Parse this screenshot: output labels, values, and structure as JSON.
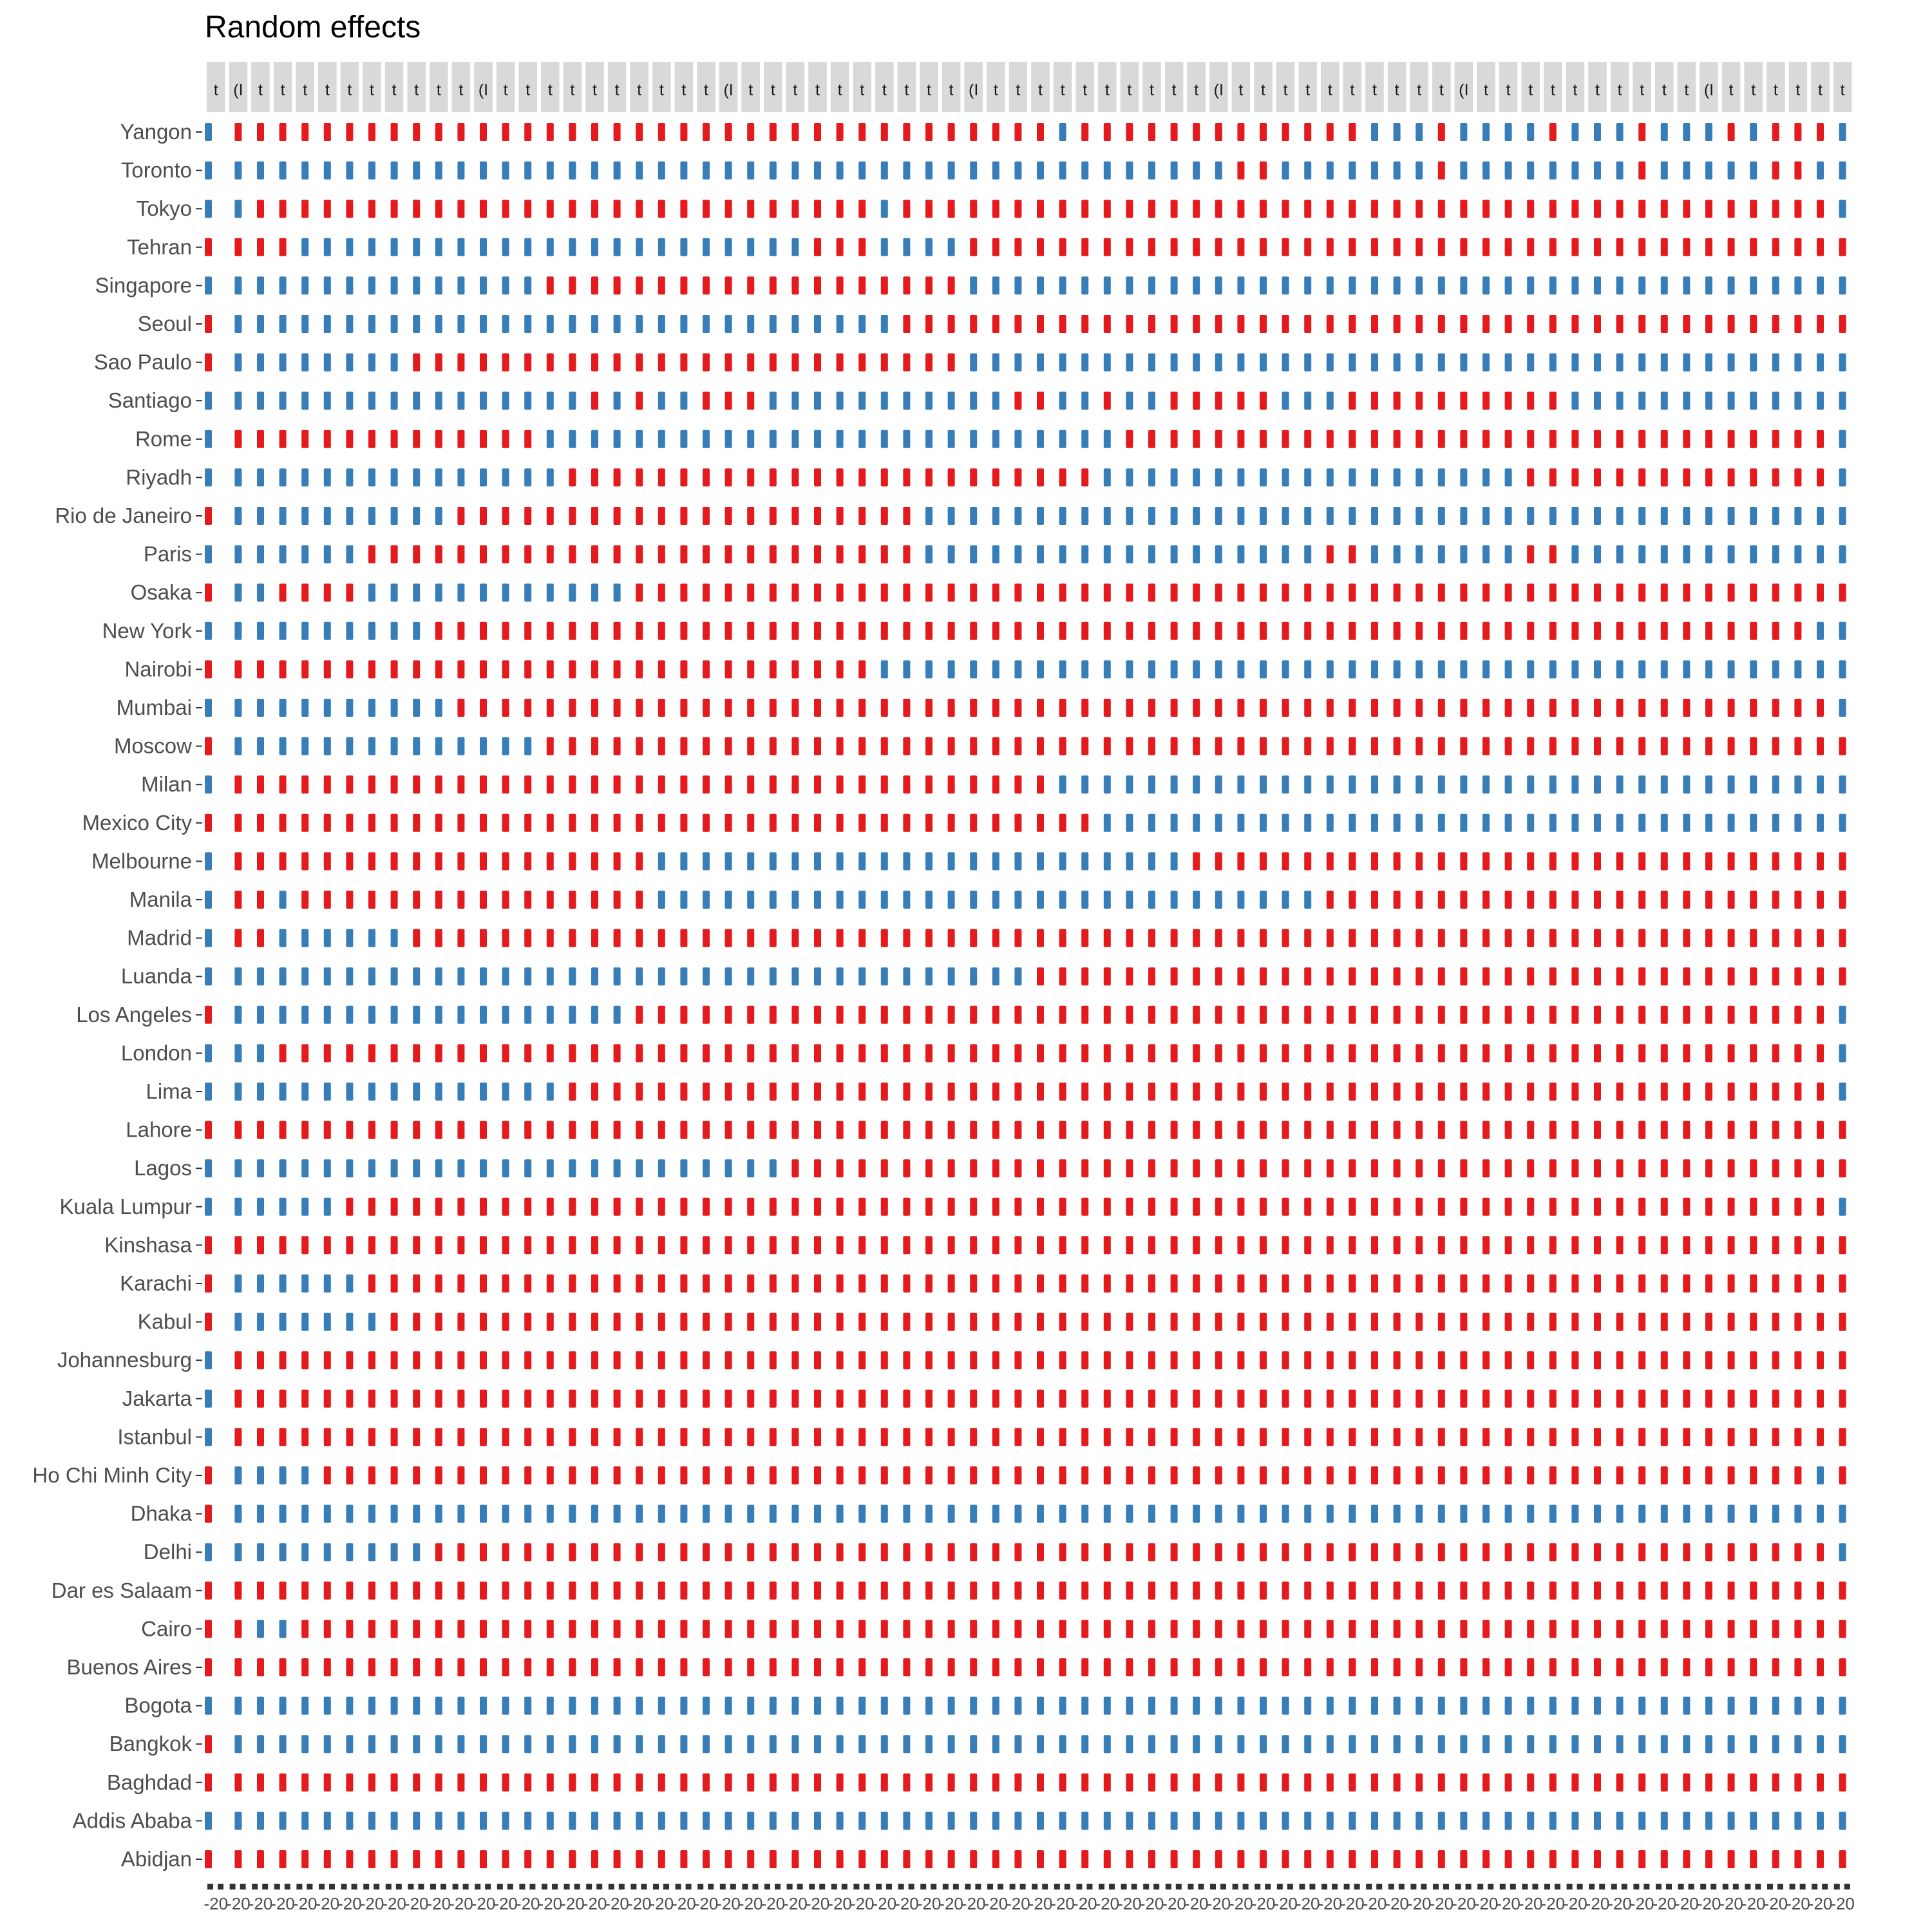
{
  "chart_data": {
    "type": "bar",
    "title": "Random effects",
    "subtitle": "",
    "xlabel": "",
    "ylabel": "",
    "facet_count": 74,
    "facet_strip_labels": [
      "t",
      "(I"
    ],
    "x_axis_tick_label": "-20",
    "legend": "none",
    "grid": false,
    "colors": {
      "positive": "#E41A1C",
      "negative": "#377EB8",
      "strip": "#d9d9d9",
      "axis": "#333333"
    },
    "categories": [
      "Yangon",
      "Toronto",
      "Tokyo",
      "Tehran",
      "Singapore",
      "Seoul",
      "Sao Paulo",
      "Santiago",
      "Rome",
      "Riyadh",
      "Rio de Janeiro",
      "Paris",
      "Osaka",
      "New York",
      "Nairobi",
      "Mumbai",
      "Moscow",
      "Milan",
      "Mexico City",
      "Melbourne",
      "Manila",
      "Madrid",
      "Luanda",
      "Los Angeles",
      "London",
      "Lima",
      "Lahore",
      "Lagos",
      "Kuala Lumpur",
      "Kinshasa",
      "Karachi",
      "Kabul",
      "Johannesburg",
      "Jakarta",
      "Istanbul",
      "Ho Chi Minh City",
      "Dhaka",
      "Delhi",
      "Dar es Salaam",
      "Cairo",
      "Buenos Aires",
      "Bogota",
      "Bangkok",
      "Baghdad",
      "Addis Ababa",
      "Abidjan"
    ],
    "sign_rows": [
      "BRRRRRRRRRRRRRRRRRRRRRRRRRRRRRRRRRRRRRBRRRRRRRRRRRRRBBBRBBBBRBBBRBBBRBRRRB",
      "BBBBBBBBBBBBBBBBBBBBBBBBBBBBBBBBBBBBBBBBBBBBBBRRBBBBBBBRBBBBBBBBRBBBBBRRBB",
      "BBRRRRRRRRRRRRRRRRRRRRRRRRRRRRBRRRRRRRRRRRRRRRRRRRRRRRRRRRRRRRRRRRRRRRRRRB",
      "RRRRBBBBBBBBBBBBBBBBBBBBBBBRRRBBBBRRRRRRRRRRRRRRRRRRRRRRRRRRRRRRRRRRRRRRRR",
      "BBBBBBBBBBBBBBBRRRRRRRRRRRRRRRRRRRBBBBBBBBBBBBBBBBBBBBBBBBBBBBBBBBBBBBBBBB",
      "RBBBBBBBBBBBBBBBBBBBBBBBBBBBBBBRRRRRRRRRRRRRRRRRRRRRRRRRRRRRRRRRRRRRRRRRRR",
      "RBBBBBBBBRRRRRRRRRRRRRRRRRRRRRRRRRBBBBBBBBBBBBBBBBBBBBBBBBBBBBBBBBBBBBBBBB",
      "BBBBBBBBBBBBBBBBBRBRBBRRRBBBBBBBBBBBRRBBRBBRRRRRBBBRRRRRRRRRRBBBBBBBBBBBBB",
      "BRRRRRRRRRRRRRRBBBBBBBBBBBBBBBBBBBBBBBBBBRRRRRRRRRRRRRRRRRRRRRRRRRRRRRRRRB",
      "BBBBBBBBBBBBBBBBRRRRRRRRRRRRRRRRRRRRRRRRBBBBBBBBBBBBBBBBBBBRRRRRRRRRRRRRRB",
      "RBBBBBBBBBBRRRRRRRRRRRRRRRRRRRRRBBBBBBBBBBBBBBBBBBBBBBBBBBBBBBBBBBBBBBBBBB",
      "BBBBBBBRRRRRRRRRRRRRRRRRRRRRRRRRBBBBBBBBBBBBBBBBBBRRBBBBBBBRRBBBBBBBBBBBBB",
      "RBBRRRRBBBBBBBBBBBBRRRRRRRRRRRRRRRRRRRRRRRRRRRRRRRRRRRRRRRRRRRRRRRRRRRRRRR",
      "BBBBBBBBBBRRRRRRRRRRRRRRRRRRRRRRRRRRRRRRRRRRRRRRRRRRRRRRRRRRRRRRRRRRRRRRBB",
      "RRRRRRRRRRRRRRRRRRRRRRRRRRRRRRBBBBBBBBBBBBBBBBBBBBBBBBBBBBBBBBBBBBBBBBBBBB",
      "BBBBBBBBBBBRRRRRRRRRRRRRRRRRRRRRRRRRRRRRRRRRRRRRRRRRRRRRRRRRRRRRRRRRRRRRRB",
      "RBBBBBBBBBBBBBBRRRRRRRRRRRRRRRRRRRRRRRRRRRRRRRRRRRRRRRRRRRRRRRRRRRRRRRRRRR",
      "BRRRRRRRRRRRRRRRRRRRRRRRRRRRRRRRRRRRRRBBBBBBBBBBBBBBBBBBBBBBBBBBBBBBBBBBBB",
      "RRRRRRRRRRRRRRRRRRRRRRRRRRRRRRRRRRRRRRRRBBBBBBBBBBBBBBBBBBBBBBBBBBBBBBBBBB",
      "BRRRRRRRRRRRRRRRRRRRBBBBBBBBBBBBBBBBBBBBBBBBRRRRRRRRRRRRRRRRRRRRRRRRRRRRRR",
      "BRRBRRRRRRRRRRRRRRRRBBBBBBBBBBBBBBBBBBBBBBBBBBBBBBRRRRRRRRRRRRRRRRRRRRRRRR",
      "BRRBBBBBBRRRRRRRRRRRRRRRRRRRRRRRRRRRRRRRRRRRRRRRRRRRRRRRRRRRRRRRRRRRRRRRRR",
      "BBBBBBBBBBBBBBBBBBBBBBBBBBBBBBBBBBBBBRRRRRRRRRRRRRRRRRRRRRRRRRRRRRRRRRRRRR",
      "RBBBBBBBBBBBBBBBBBBRRRRRRRRRRRRRRRRRRRRRRRRRRRRRRRRRRRRRRRRRRRRRRRRRRRRRRB",
      "BBBRRRRRRRRRRRRRRRRRRRRRRRRRRRRRRRRRRRRRRRRRRRRRRRRRRRRRRRRRRRRRRRRRRRRRRB",
      "BBBBBBBBBBBBBBBBRRRRRRRRRRRRRRRRRRRRRRRRRRRRRRRRRRRRRRRRRRRRRRRRRRRRRRRRRB",
      "RRRRRRRRRRRRRRRRRRRRRRRRRRRRRRRRRRRRRRRRRRRRRRRRRRRRRRRRRRRRRRRRRRRRRRRRRR",
      "BBBBBBBBBBBBBBBBBBBBBBBBBBRRRRRRRRRRRRRRRRRRRRRRRRRRRRRRRRRRRRRRRRRRRRRRRR",
      "BBBBBBRRRRRRRRRRRRRRRRRRRRRRRRRRRRRRRRRRRRRRRRRRRRRRRRRRRRRRRRRRRRRRRRRRRB",
      "RRRRRRRRRRRRRRRRRRRRRRRRRRRRRRRRRRRRRRRRRRRRRRRRRRRRRRRRRRRRRRRRRRRRRRRRRR",
      "RBBBBBBRRRRRRRRRRRRRRRRRRRRRRRRRRRRRRRRRRRRRRRRRRRRRRRRRRRRRRRRRRRRRRRRRRR",
      "RBBBBBBBRRRRRRRRRRRRRRRRRRRRRRRRRRRRRRRRRRRRRRRRRRRRRRRRRRRRRRRRRRRRRRRRRR",
      "BRRRRRRRRRRRRRRRRRRRRRRRRRRRRRRRRRRRRRRRRRRRRRRRRRRRRRRRRRRRRRRRRRRRRRRRRR",
      "BRRRRRRRRRRRRRRRRRRRRRRRRRRRRRRRRRRRRRRRRRRRRRRRRRRRRRRRRRRRRRRRRRRRRRRRRR",
      "BRRRRRRRRRRRRRRRRRRRRRRRRRRRRRRRRRRRRRRRRRRRRRRRRRRRRRRRRRRRRRRRRRRRRRRRRR",
      "RBBBBRRRRRRRRRRRRRRRRRRRRRRRRRRRRRRRRRRRRRRRRRRRRRRRRRRRRRRRRRRRRRRRRRRRBR",
      "RBBBBBBBBBBBBBBBBBBBBBBBBBBBBBBBBBBBBBBBBBBBBBBBBBBBBBBBBBBBBBBBBBBBBBBBBB",
      "BBBBBBBBBBRRRRRRRRRRRRRRRRRRRRRRRRRRRRRRRRRRRRRRRRRRRRRRRRRRRRRRRRRRRRRRRB",
      "RRRRRRRRRRRRRRRRRRRRRRRRRRRRRRRRRRRRRRRRRRRRRRRRRRRRRRRRRRRRRRRRRRRRRRRRRR",
      "RRBBRRRRRRRRRRRRRRRRRRRRRRRRRRRRRRRRRRRRRRRRRRRRRRRRRRRRRRRRRRRRRRRRRRRRRR",
      "RRRRRRRRRRRRRRRRRRRRRRRRRRRRRRRRRRRRRRRRRRRRRRRRRRRRRRRRRRRRRRRRRRRRRRRRRR",
      "BBBBBBBBBBBBBBBBBBBBBBBBBBBBBBBBBBBBBBBBBBBBBBBBBBBBBBBBBBBBBBBBBBBBBBBBBB",
      "RBBBBBBBBBBBBBBBBBBBBBBBBBBBBBBBBBBBBBBBBBBBBBBBBBBBBBBBBBBBBBBBBBBBBBBBBB",
      "RRRRRRRRRRRRRRRRRRRRRRRRRRRRRRRRRRRRRRRRRRRRRRRRRRRRRRRRRRRRRRRRRRRRRRRRRR",
      "BBBBBBBBBBBBBBBBBBBBBBBBBBBBBBBBBBBBBBBBBBBBBBBBBBBBBBBBBBBBBBBBBBBBBBBBBB",
      "RRRRRRRRRRRRRRRRRRRRRRRRRRRRRRRRRRRRRRRRRRRRRRRRRRRRRRRRRRRRRRRRRRRRRRRRRR"
    ]
  }
}
